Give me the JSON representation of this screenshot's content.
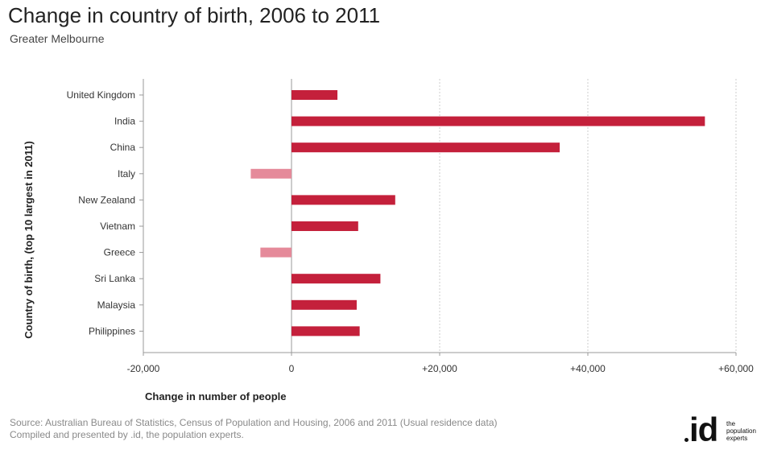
{
  "header": {
    "title": "Change in country of birth, 2006 to 2011",
    "subtitle": "Greater Melbourne"
  },
  "chart_data": {
    "type": "bar",
    "orientation": "horizontal",
    "title": "Change in country of birth, 2006 to 2011",
    "subtitle": "Greater Melbourne",
    "xlabel": "Change in number of people",
    "ylabel": "Country of birth, (top 10 largest in 2011)",
    "categories": [
      "United Kingdom",
      "India",
      "China",
      "Italy",
      "New Zealand",
      "Vietnam",
      "Greece",
      "Sri Lanka",
      "Malaysia",
      "Philippines"
    ],
    "values": [
      6200,
      55800,
      36200,
      -5500,
      14000,
      9000,
      -4200,
      12000,
      8800,
      9200
    ],
    "xlim": [
      -20000,
      60000
    ],
    "xticks": [
      -20000,
      0,
      20000,
      40000,
      60000
    ],
    "xtick_labels": [
      "-20,000",
      "0",
      "+20,000",
      "+40,000",
      "+60,000"
    ],
    "grid": true,
    "colors": {
      "positive": "#c4203b",
      "negative": "#e58a9a",
      "grid": "#cccccc",
      "axis": "#999999"
    }
  },
  "footer": {
    "source_line1": "Source: Australian Bureau of Statistics, Census of Population and Housing, 2006 and 2011 (Usual residence data)",
    "source_line2": "Compiled and presented by .id, the population experts.",
    "logo_text": "id",
    "logo_tag": [
      "the",
      "population",
      "experts"
    ]
  }
}
